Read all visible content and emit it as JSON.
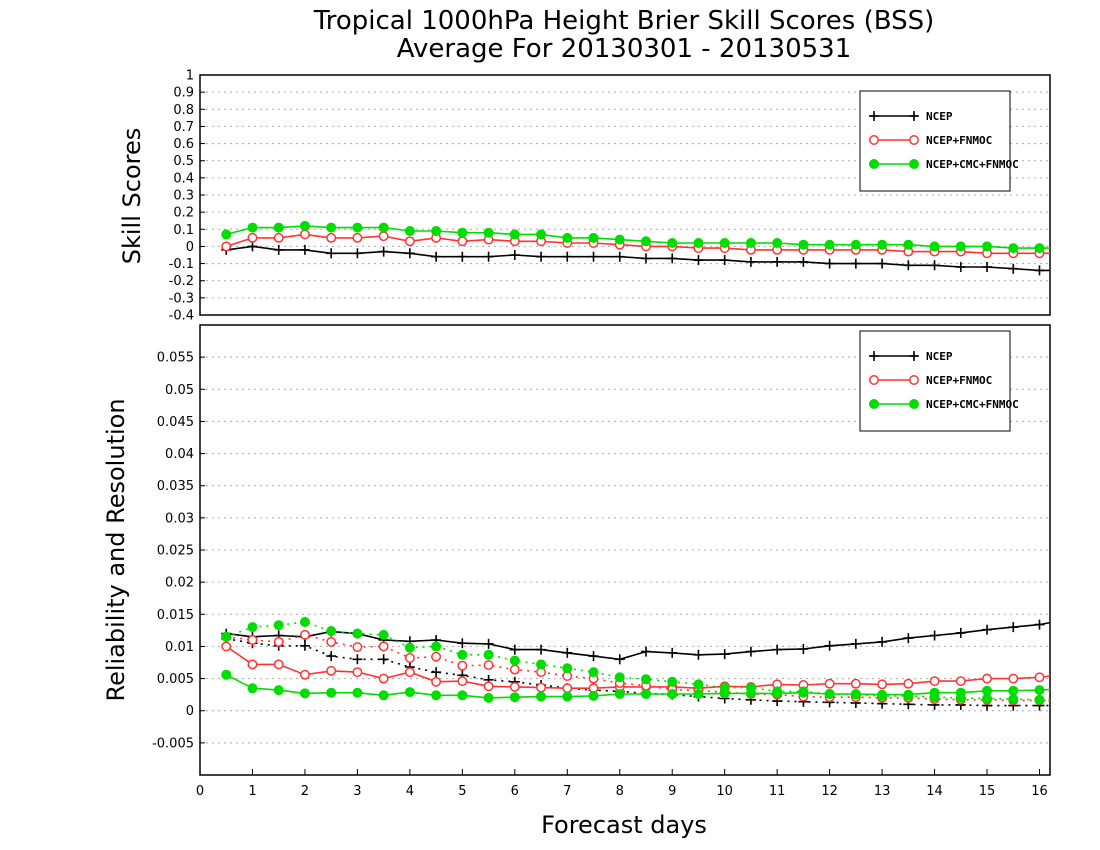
{
  "title_line1": "Tropical 1000hPa Height Brier Skill Scores (BSS)",
  "title_line2": "Average For 20130301 - 20130531",
  "chart_data": [
    {
      "type": "line",
      "ylabel": "Skill Scores",
      "ylim": [
        -0.4,
        1
      ],
      "yticks": [
        "1",
        "0.9",
        "0.8",
        "0.7",
        "0.6",
        "0.5",
        "0.4",
        "0.3",
        "0.2",
        "0.1",
        "0",
        "-0.1",
        "-0.2",
        "-0.3",
        "-0.4"
      ],
      "xlim": [
        0,
        16.2
      ],
      "legend_position": "top-right",
      "x": [
        0.5,
        1,
        1.5,
        2,
        2.5,
        3,
        3.5,
        4,
        4.5,
        5,
        5.5,
        6,
        6.5,
        7,
        7.5,
        8,
        8.5,
        9,
        9.5,
        10,
        10.5,
        11,
        11.5,
        12,
        12.5,
        13,
        13.5,
        14,
        14.5,
        15,
        15.5,
        16,
        16.2
      ],
      "series": [
        {
          "name": "NCEP",
          "color": "#000000",
          "marker": "plus",
          "values": [
            -0.02,
            0.0,
            -0.02,
            -0.02,
            -0.04,
            -0.04,
            -0.03,
            -0.04,
            -0.06,
            -0.06,
            -0.06,
            -0.05,
            -0.06,
            -0.06,
            -0.06,
            -0.06,
            -0.07,
            -0.07,
            -0.08,
            -0.08,
            -0.09,
            -0.09,
            -0.09,
            -0.1,
            -0.1,
            -0.1,
            -0.11,
            -0.11,
            -0.12,
            -0.12,
            -0.13,
            -0.14,
            -0.14
          ]
        },
        {
          "name": "NCEP+FNMOC",
          "color": "#ff3333",
          "marker": "open-circle",
          "values": [
            0.0,
            0.05,
            0.05,
            0.07,
            0.05,
            0.05,
            0.06,
            0.03,
            0.05,
            0.03,
            0.04,
            0.03,
            0.03,
            0.02,
            0.02,
            0.01,
            0.0,
            0.0,
            -0.01,
            -0.01,
            -0.02,
            -0.02,
            -0.02,
            -0.02,
            -0.02,
            -0.02,
            -0.03,
            -0.03,
            -0.03,
            -0.04,
            -0.04,
            -0.04,
            -0.04
          ]
        },
        {
          "name": "NCEP+CMC+FNMOC",
          "color": "#00dd00",
          "marker": "filled-circle",
          "values": [
            0.07,
            0.11,
            0.11,
            0.12,
            0.11,
            0.11,
            0.11,
            0.09,
            0.09,
            0.08,
            0.08,
            0.07,
            0.07,
            0.05,
            0.05,
            0.04,
            0.03,
            0.02,
            0.02,
            0.02,
            0.02,
            0.02,
            0.01,
            0.01,
            0.01,
            0.01,
            0.01,
            0.0,
            0.0,
            0.0,
            -0.01,
            -0.01,
            -0.01
          ]
        }
      ]
    },
    {
      "type": "line",
      "ylabel": "Reliability and Resolution",
      "xlabel": "Forecast days",
      "ylim": [
        -0.01,
        0.06
      ],
      "yticks": [
        "0.055",
        "0.05",
        "0.045",
        "0.04",
        "0.035",
        "0.03",
        "0.025",
        "0.02",
        "0.015",
        "0.01",
        "0.005",
        "0",
        "-0.005"
      ],
      "xticks": [
        "0",
        "1",
        "2",
        "3",
        "4",
        "5",
        "6",
        "7",
        "8",
        "9",
        "10",
        "11",
        "12",
        "13",
        "14",
        "15",
        "16"
      ],
      "xlim": [
        0,
        16.2
      ],
      "legend_position": "top-right",
      "legend": [
        "NCEP",
        "NCEP+FNMOC",
        "NCEP+CMC+FNMOC"
      ],
      "x": [
        0.5,
        1,
        1.5,
        2,
        2.5,
        3,
        3.5,
        4,
        4.5,
        5,
        5.5,
        6,
        6.5,
        7,
        7.5,
        8,
        8.5,
        9,
        9.5,
        10,
        10.5,
        11,
        11.5,
        12,
        12.5,
        13,
        13.5,
        14,
        14.5,
        15,
        15.5,
        16,
        16.2
      ],
      "series": [
        {
          "name": "NCEP",
          "kind": "resolution",
          "color": "#000000",
          "marker": "plus",
          "dash": "solid",
          "values": [
            0.012,
            0.0115,
            0.0117,
            0.0115,
            0.0123,
            0.012,
            0.011,
            0.0108,
            0.011,
            0.0105,
            0.0104,
            0.0095,
            0.0095,
            0.009,
            0.0085,
            0.008,
            0.0092,
            0.009,
            0.0087,
            0.0088,
            0.0092,
            0.0095,
            0.0096,
            0.0101,
            0.0104,
            0.0107,
            0.0113,
            0.0117,
            0.0121,
            0.0126,
            0.013,
            0.0134,
            0.0137
          ]
        },
        {
          "name": "NCEP",
          "kind": "reliability",
          "color": "#000000",
          "marker": "plus",
          "dash": "dotted",
          "values": [
            0.0112,
            0.0105,
            0.0101,
            0.0101,
            0.0085,
            0.008,
            0.008,
            0.0068,
            0.006,
            0.0055,
            0.0048,
            0.0045,
            0.004,
            0.0035,
            0.0032,
            0.003,
            0.0027,
            0.0025,
            0.0022,
            0.0019,
            0.0017,
            0.0015,
            0.0014,
            0.0013,
            0.0012,
            0.0011,
            0.001,
            0.0009,
            0.0009,
            0.0008,
            0.0008,
            0.0008,
            0.0008
          ]
        },
        {
          "name": "NCEP+FNMOC",
          "kind": "resolution",
          "color": "#ff3333",
          "marker": "open-circle",
          "dash": "solid",
          "values": [
            0.01,
            0.0072,
            0.0072,
            0.0056,
            0.0062,
            0.006,
            0.005,
            0.006,
            0.0045,
            0.0046,
            0.0038,
            0.0037,
            0.0036,
            0.0035,
            0.0035,
            0.0037,
            0.0037,
            0.0037,
            0.0035,
            0.0038,
            0.0037,
            0.0041,
            0.004,
            0.0042,
            0.0042,
            0.0041,
            0.0042,
            0.0046,
            0.0046,
            0.005,
            0.005,
            0.0052,
            0.0054
          ]
        },
        {
          "name": "NCEP+FNMOC",
          "kind": "reliability",
          "color": "#ff3333",
          "marker": "open-circle",
          "dash": "dotted",
          "values": [
            0.0115,
            0.011,
            0.0107,
            0.0118,
            0.0107,
            0.0099,
            0.01,
            0.0082,
            0.0084,
            0.007,
            0.0071,
            0.0064,
            0.006,
            0.0054,
            0.005,
            0.0043,
            0.0039,
            0.0033,
            0.0031,
            0.0029,
            0.0026,
            0.0025,
            0.0022,
            0.0021,
            0.0021,
            0.002,
            0.002,
            0.0018,
            0.0017,
            0.0017,
            0.0016,
            0.0016,
            0.0016
          ]
        },
        {
          "name": "NCEP+CMC+FNMOC",
          "kind": "resolution",
          "color": "#00dd00",
          "marker": "filled-circle",
          "dash": "solid",
          "values": [
            0.0056,
            0.0035,
            0.0032,
            0.0027,
            0.0028,
            0.0028,
            0.0024,
            0.0029,
            0.0024,
            0.0024,
            0.002,
            0.0021,
            0.0022,
            0.0022,
            0.0023,
            0.0026,
            0.0026,
            0.0026,
            0.0026,
            0.0027,
            0.0027,
            0.0027,
            0.0028,
            0.0026,
            0.0026,
            0.0025,
            0.0025,
            0.0028,
            0.0028,
            0.0031,
            0.0031,
            0.0032,
            0.0033
          ]
        },
        {
          "name": "NCEP+CMC+FNMOC",
          "kind": "reliability",
          "color": "#00dd00",
          "marker": "filled-circle",
          "dash": "dotted",
          "values": [
            0.0115,
            0.013,
            0.0133,
            0.0138,
            0.0124,
            0.012,
            0.0118,
            0.0098,
            0.01,
            0.0087,
            0.0087,
            0.0078,
            0.0072,
            0.0066,
            0.006,
            0.0052,
            0.0049,
            0.0045,
            0.0041,
            0.0036,
            0.0036,
            0.003,
            0.003,
            0.0026,
            0.0025,
            0.0023,
            0.0023,
            0.0021,
            0.002,
            0.0019,
            0.0018,
            0.0017,
            0.0016
          ]
        }
      ]
    }
  ]
}
